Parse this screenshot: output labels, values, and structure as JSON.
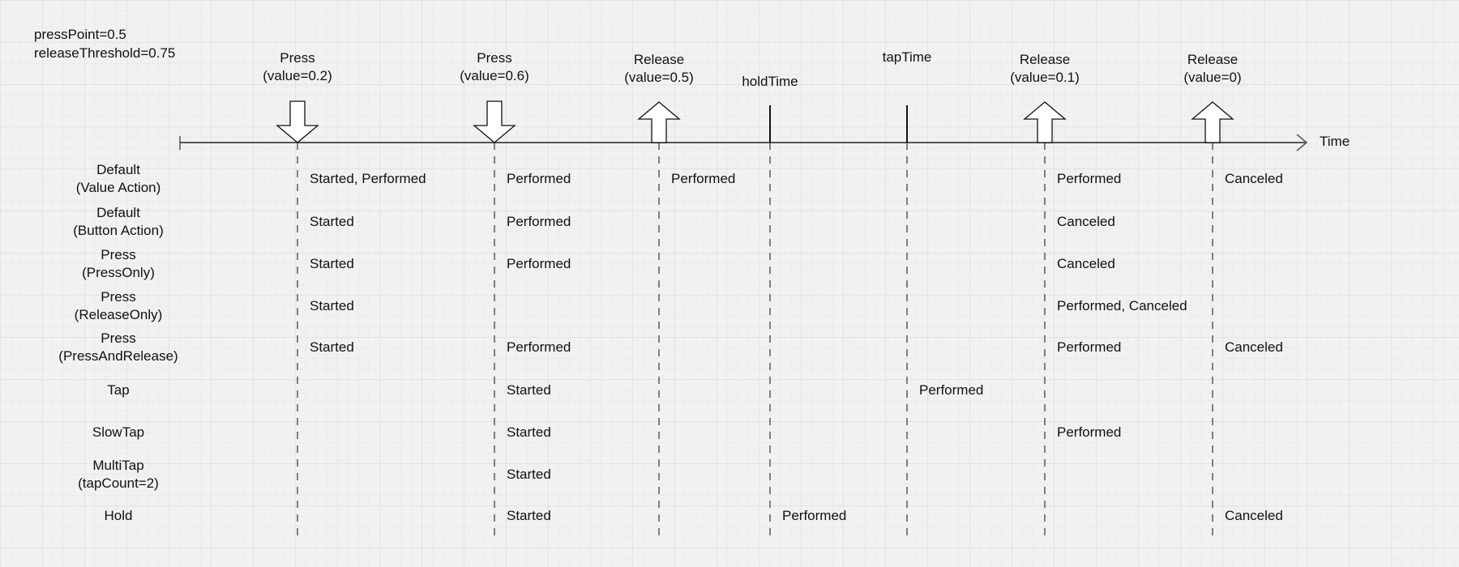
{
  "params": [
    "pressPoint=0.5",
    "releaseThreshold=0.75"
  ],
  "axis_label": "Time",
  "events": [
    {
      "kind": "press",
      "label": [
        "Press",
        "(value=0.2)"
      ]
    },
    {
      "kind": "press",
      "label": [
        "Press",
        "(value=0.6)"
      ]
    },
    {
      "kind": "release",
      "label": [
        "Release",
        "(value=0.5)"
      ]
    },
    {
      "kind": "marker",
      "label": [
        "holdTime"
      ]
    },
    {
      "kind": "marker",
      "label": [
        "tapTime"
      ]
    },
    {
      "kind": "release",
      "label": [
        "Release",
        "(value=0.1)"
      ]
    },
    {
      "kind": "release",
      "label": [
        "Release",
        "(value=0)"
      ]
    }
  ],
  "rows": [
    {
      "label": [
        "Default",
        "(Value Action)"
      ],
      "cells": [
        "Started, Performed",
        "Performed",
        "Performed",
        "",
        "",
        "Performed",
        "Canceled"
      ]
    },
    {
      "label": [
        "Default",
        "(Button Action)"
      ],
      "cells": [
        "Started",
        "Performed",
        "",
        "",
        "",
        "Canceled",
        ""
      ]
    },
    {
      "label": [
        "Press",
        "(PressOnly)"
      ],
      "cells": [
        "Started",
        "Performed",
        "",
        "",
        "",
        "Canceled",
        ""
      ]
    },
    {
      "label": [
        "Press",
        "(ReleaseOnly)"
      ],
      "cells": [
        "Started",
        "",
        "",
        "",
        "",
        "Performed, Canceled",
        ""
      ]
    },
    {
      "label": [
        "Press",
        "(PressAndRelease)"
      ],
      "cells": [
        "Started",
        "Performed",
        "",
        "",
        "",
        "Performed",
        "Canceled"
      ]
    },
    {
      "label": [
        "Tap"
      ],
      "cells": [
        "",
        "Started",
        "",
        "",
        "Performed",
        "",
        ""
      ]
    },
    {
      "label": [
        "SlowTap"
      ],
      "cells": [
        "",
        "Started",
        "",
        "",
        "",
        "Performed",
        ""
      ]
    },
    {
      "label": [
        "MultiTap",
        "(tapCount=2)"
      ],
      "cells": [
        "",
        "Started",
        "",
        "",
        "",
        "",
        ""
      ]
    },
    {
      "label": [
        "Hold"
      ],
      "cells": [
        "",
        "Started",
        "",
        "Performed",
        "",
        "",
        "Canceled"
      ]
    }
  ]
}
